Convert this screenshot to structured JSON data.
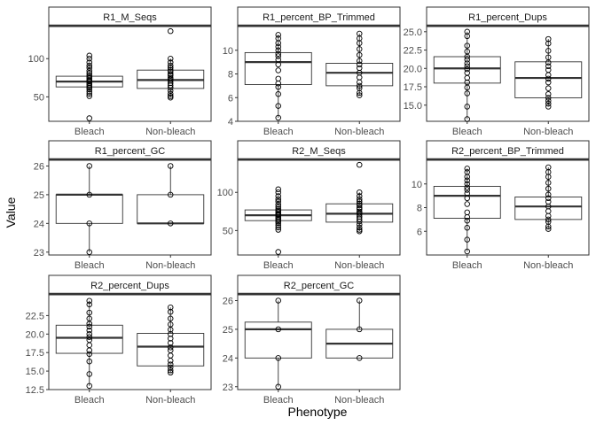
{
  "chart_data": {
    "type": "boxplot",
    "facet_layout": "3x3 grid, free y scales",
    "xlabel": "Phenotype",
    "ylabel": "Value",
    "categories": [
      "Bleach",
      "Non-bleach"
    ],
    "panels": [
      {
        "title": "R1_M_Seqs",
        "ylim": [
          18,
          142
        ],
        "yticks": [
          50,
          100
        ],
        "groups": [
          {
            "category": "Bleach",
            "whisker_low": 51,
            "q1": 63,
            "median": 70,
            "q3": 77,
            "whisker_high": 95,
            "points": [
              22,
              51,
              54,
              57,
              60,
              62,
              64,
              66,
              68,
              70,
              71,
              72,
              74,
              76,
              78,
              81,
              84,
              88,
              91,
              95,
              100,
              104
            ]
          },
          {
            "category": "Non-bleach",
            "whisker_low": 49,
            "q1": 61,
            "median": 72,
            "q3": 85,
            "whisker_high": 100,
            "points": [
              49,
              51,
              54,
              58,
              62,
              65,
              68,
              71,
              73,
              75,
              78,
              80,
              83,
              85,
              88,
              91,
              95,
              100,
              136
            ]
          }
        ]
      },
      {
        "title": "R1_percent_BP_Trimmed",
        "ylim": [
          4,
          12
        ],
        "yticks": [
          4,
          6,
          8,
          10
        ],
        "groups": [
          {
            "category": "Bleach",
            "whisker_low": 4.3,
            "q1": 7.1,
            "median": 9.0,
            "q3": 9.8,
            "whisker_high": 11.3,
            "points": [
              4.3,
              5.3,
              6.3,
              6.9,
              7.2,
              7.6,
              8.3,
              8.8,
              9.2,
              9.5,
              9.7,
              10.0,
              10.3,
              10.6,
              11.0,
              11.3
            ]
          },
          {
            "category": "Non-bleach",
            "whisker_low": 6.2,
            "q1": 7.0,
            "median": 8.1,
            "q3": 8.9,
            "whisker_high": 11.4,
            "points": [
              6.2,
              6.4,
              6.8,
              7.0,
              7.3,
              7.7,
              8.1,
              8.5,
              8.8,
              9.1,
              9.6,
              10.1,
              10.6,
              11.0,
              11.4
            ]
          }
        ]
      },
      {
        "title": "R1_percent_Dups",
        "ylim": [
          12.8,
          25.7
        ],
        "yticks": [
          15.0,
          17.5,
          20.0,
          22.5,
          25.0
        ],
        "groups": [
          {
            "category": "Bleach",
            "whisker_low": 13.1,
            "q1": 18.0,
            "median": 20.0,
            "q3": 21.6,
            "whisker_high": 25.0,
            "points": [
              13.1,
              14.8,
              16.6,
              17.4,
              18.1,
              18.7,
              19.4,
              19.9,
              20.3,
              20.7,
              21.2,
              21.6,
              22.3,
              23.1,
              24.4,
              25.0
            ]
          },
          {
            "category": "Non-bleach",
            "whisker_low": 14.8,
            "q1": 16.0,
            "median": 18.7,
            "q3": 20.9,
            "whisker_high": 24.0,
            "points": [
              14.8,
              15.2,
              15.6,
              16.0,
              16.5,
              17.3,
              18.1,
              18.6,
              19.1,
              19.8,
              20.3,
              20.8,
              21.5,
              22.4,
              23.4,
              24.0
            ]
          }
        ]
      },
      {
        "title": "R1_percent_GC",
        "ylim": [
          22.9,
          26.2
        ],
        "yticks": [
          23,
          24,
          25,
          26
        ],
        "groups": [
          {
            "category": "Bleach",
            "whisker_low": 23,
            "q1": 24,
            "median": 25,
            "q3": 25,
            "whisker_high": 26,
            "points": [
              23,
              24,
              25,
              26
            ]
          },
          {
            "category": "Non-bleach",
            "whisker_low": 24,
            "q1": 24,
            "median": 24,
            "q3": 25,
            "whisker_high": 26,
            "points": [
              24,
              25,
              26
            ]
          }
        ]
      },
      {
        "title": "R2_M_Seqs",
        "ylim": [
          18,
          142
        ],
        "yticks": [
          50,
          100
        ],
        "groups": [
          {
            "category": "Bleach",
            "whisker_low": 51,
            "q1": 63,
            "median": 70,
            "q3": 77,
            "whisker_high": 95,
            "points": [
              22,
              51,
              54,
              57,
              60,
              62,
              64,
              66,
              68,
              70,
              71,
              72,
              74,
              76,
              78,
              81,
              84,
              88,
              91,
              95,
              100,
              104
            ]
          },
          {
            "category": "Non-bleach",
            "whisker_low": 49,
            "q1": 61,
            "median": 72,
            "q3": 85,
            "whisker_high": 100,
            "points": [
              49,
              51,
              54,
              58,
              62,
              65,
              68,
              71,
              73,
              75,
              78,
              80,
              83,
              85,
              88,
              91,
              95,
              100,
              136
            ]
          }
        ]
      },
      {
        "title": "R2_percent_BP_Trimmed",
        "ylim": [
          4,
          12
        ],
        "yticks": [
          6,
          8,
          10
        ],
        "groups": [
          {
            "category": "Bleach",
            "whisker_low": 4.3,
            "q1": 7.1,
            "median": 9.0,
            "q3": 9.8,
            "whisker_high": 11.3,
            "points": [
              4.3,
              5.3,
              6.3,
              6.9,
              7.2,
              7.6,
              8.3,
              8.8,
              9.2,
              9.5,
              9.7,
              10.0,
              10.3,
              10.6,
              11.0,
              11.3
            ]
          },
          {
            "category": "Non-bleach",
            "whisker_low": 6.2,
            "q1": 7.0,
            "median": 8.1,
            "q3": 8.9,
            "whisker_high": 11.4,
            "points": [
              6.2,
              6.4,
              6.8,
              7.0,
              7.3,
              7.7,
              8.1,
              8.5,
              8.8,
              9.1,
              9.6,
              10.1,
              10.6,
              11.0,
              11.4
            ]
          }
        ]
      },
      {
        "title": "R2_percent_Dups",
        "ylim": [
          12.5,
          25.3
        ],
        "yticks": [
          12.5,
          15.0,
          17.5,
          20.0,
          22.5
        ],
        "groups": [
          {
            "category": "Bleach",
            "whisker_low": 13.0,
            "q1": 17.4,
            "median": 19.5,
            "q3": 21.2,
            "whisker_high": 24.5,
            "points": [
              13.0,
              14.6,
              16.3,
              17.3,
              17.8,
              18.5,
              19.2,
              19.6,
              20.0,
              20.5,
              21.0,
              21.4,
              22.1,
              22.9,
              24.0,
              24.5
            ]
          },
          {
            "category": "Non-bleach",
            "whisker_low": 14.8,
            "q1": 15.7,
            "median": 18.3,
            "q3": 20.1,
            "whisker_high": 23.6,
            "points": [
              14.8,
              15.1,
              15.5,
              15.9,
              16.4,
              17.1,
              17.8,
              18.2,
              18.8,
              19.4,
              20.0,
              20.6,
              21.3,
              22.1,
              23.0,
              23.6
            ]
          }
        ]
      },
      {
        "title": "R2_percent_GC",
        "ylim": [
          22.9,
          26.2
        ],
        "yticks": [
          23,
          24,
          25,
          26
        ],
        "groups": [
          {
            "category": "Bleach",
            "whisker_low": 23,
            "q1": 24,
            "median": 25,
            "q3": 25.25,
            "whisker_high": 26,
            "points": [
              23,
              24,
              25,
              26
            ]
          },
          {
            "category": "Non-bleach",
            "whisker_low": 24,
            "q1": 24,
            "median": 24.5,
            "q3": 25,
            "whisker_high": 26,
            "points": [
              24,
              25,
              26
            ]
          }
        ]
      }
    ]
  }
}
